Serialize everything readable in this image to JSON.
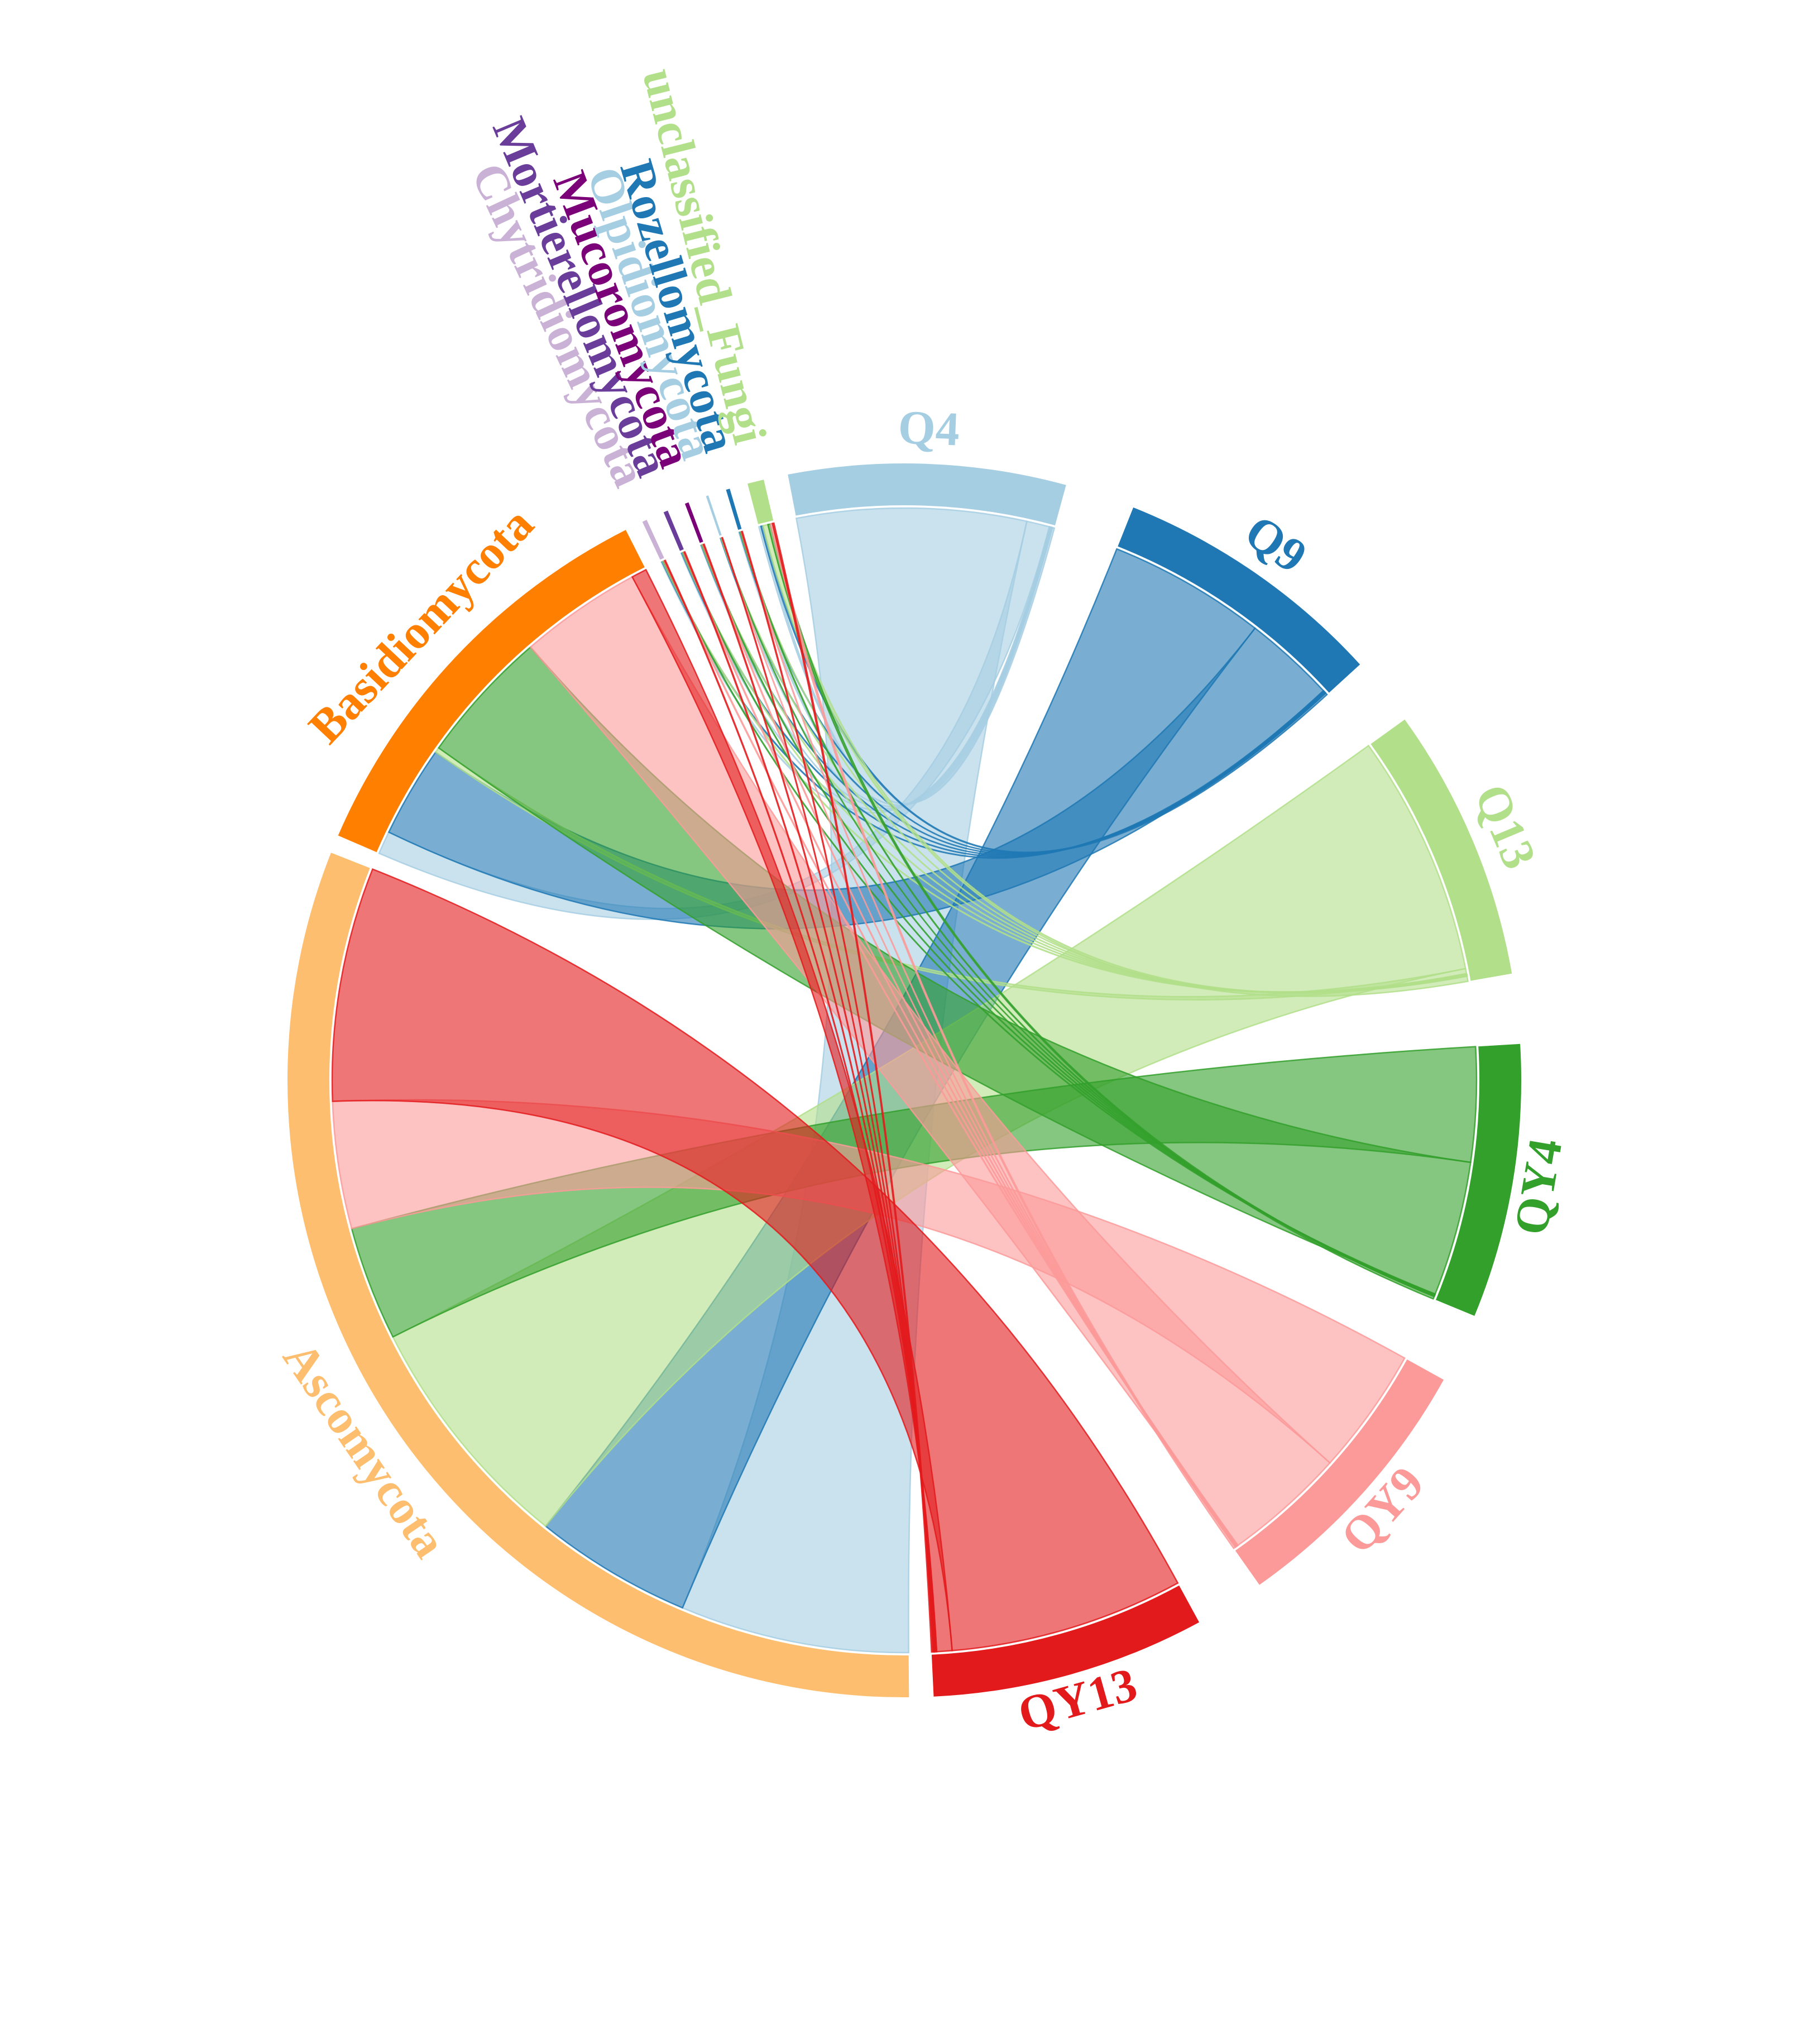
{
  "chart_data": {
    "type": "chord",
    "title": "",
    "samples": [
      {
        "name": "Q4",
        "color": "#a6cee3"
      },
      {
        "name": "Q9",
        "color": "#1f78b4"
      },
      {
        "name": "Q13",
        "color": "#b2df8a"
      },
      {
        "name": "QY4",
        "color": "#33a02c"
      },
      {
        "name": "QY9",
        "color": "#fb9a99"
      },
      {
        "name": "QY13",
        "color": "#e31a1c"
      }
    ],
    "phyla": [
      {
        "name": "Ascomycota",
        "color": "#fdbf6f"
      },
      {
        "name": "Basidiomycota",
        "color": "#ff7f00"
      },
      {
        "name": "Chytridiomycota",
        "color": "#cab2d6"
      },
      {
        "name": "Mortierellomycota",
        "color": "#6a3d9a"
      },
      {
        "name": "Mucoromycota",
        "color": "#7a0177"
      },
      {
        "name": "Olpidiomycota",
        "color": "#a6cee3"
      },
      {
        "name": "Rozellomycota",
        "color": "#1f78b4"
      },
      {
        "name": "unclassified_Fungi",
        "color": "#b2df8a"
      }
    ],
    "flows": [
      {
        "sample": "Q4",
        "phylum": "Ascomycota",
        "value": 90
      },
      {
        "sample": "Q4",
        "phylum": "Basidiomycota",
        "value": 9
      },
      {
        "sample": "Q4",
        "phylum": "Chytridiomycota",
        "value": 0.3
      },
      {
        "sample": "Q4",
        "phylum": "Mortierellomycota",
        "value": 0.3
      },
      {
        "sample": "Q4",
        "phylum": "Mucoromycota",
        "value": 0.2
      },
      {
        "sample": "Q4",
        "phylum": "Olpidiomycota",
        "value": 0.1
      },
      {
        "sample": "Q4",
        "phylum": "Rozellomycota",
        "value": 0.3
      },
      {
        "sample": "Q4",
        "phylum": "unclassified_Fungi",
        "value": 0.8
      },
      {
        "sample": "Q9",
        "phylum": "Ascomycota",
        "value": 62
      },
      {
        "sample": "Q9",
        "phylum": "Basidiomycota",
        "value": 36
      },
      {
        "sample": "Q9",
        "phylum": "Chytridiomycota",
        "value": 0.3
      },
      {
        "sample": "Q9",
        "phylum": "Mortierellomycota",
        "value": 0.3
      },
      {
        "sample": "Q9",
        "phylum": "Mucoromycota",
        "value": 0.2
      },
      {
        "sample": "Q9",
        "phylum": "Olpidiomycota",
        "value": 0.2
      },
      {
        "sample": "Q9",
        "phylum": "Rozellomycota",
        "value": 0.2
      },
      {
        "sample": "Q9",
        "phylum": "unclassified_Fungi",
        "value": 0.8
      },
      {
        "sample": "Q13",
        "phylum": "Ascomycota",
        "value": 95
      },
      {
        "sample": "Q13",
        "phylum": "Basidiomycota",
        "value": 2
      },
      {
        "sample": "Q13",
        "phylum": "Chytridiomycota",
        "value": 0.3
      },
      {
        "sample": "Q13",
        "phylum": "Mortierellomycota",
        "value": 0.2
      },
      {
        "sample": "Q13",
        "phylum": "Mucoromycota",
        "value": 0.2
      },
      {
        "sample": "Q13",
        "phylum": "Olpidiomycota",
        "value": 0.2
      },
      {
        "sample": "Q13",
        "phylum": "Rozellomycota",
        "value": 0.1
      },
      {
        "sample": "Q13",
        "phylum": "unclassified_Fungi",
        "value": 2
      },
      {
        "sample": "QY4",
        "phylum": "Ascomycota",
        "value": 45
      },
      {
        "sample": "QY4",
        "phylum": "Basidiomycota",
        "value": 53
      },
      {
        "sample": "QY4",
        "phylum": "Chytridiomycota",
        "value": 0.2
      },
      {
        "sample": "QY4",
        "phylum": "Mortierellomycota",
        "value": 0.2
      },
      {
        "sample": "QY4",
        "phylum": "Mucoromycota",
        "value": 0.2
      },
      {
        "sample": "QY4",
        "phylum": "Olpidiomycota",
        "value": 0.1
      },
      {
        "sample": "QY4",
        "phylum": "Rozellomycota",
        "value": 0.3
      },
      {
        "sample": "QY4",
        "phylum": "unclassified_Fungi",
        "value": 1
      },
      {
        "sample": "QY9",
        "phylum": "Ascomycota",
        "value": 50
      },
      {
        "sample": "QY9",
        "phylum": "Basidiomycota",
        "value": 48
      },
      {
        "sample": "QY9",
        "phylum": "Chytridiomycota",
        "value": 0.3
      },
      {
        "sample": "QY9",
        "phylum": "Mortierellomycota",
        "value": 0.3
      },
      {
        "sample": "QY9",
        "phylum": "Mucoromycota",
        "value": 0.3
      },
      {
        "sample": "QY9",
        "phylum": "Olpidiomycota",
        "value": 0.1
      },
      {
        "sample": "QY9",
        "phylum": "Rozellomycota",
        "value": 0.2
      },
      {
        "sample": "QY9",
        "phylum": "unclassified_Fungi",
        "value": 0.8
      },
      {
        "sample": "QY13",
        "phylum": "Ascomycota",
        "value": 92
      },
      {
        "sample": "QY13",
        "phylum": "Basidiomycota",
        "value": 6
      },
      {
        "sample": "QY13",
        "phylum": "Chytridiomycota",
        "value": 0.3
      },
      {
        "sample": "QY13",
        "phylum": "Mortierellomycota",
        "value": 0.3
      },
      {
        "sample": "QY13",
        "phylum": "Mucoromycota",
        "value": 0.3
      },
      {
        "sample": "QY13",
        "phylum": "Olpidiomycota",
        "value": 0.2
      },
      {
        "sample": "QY13",
        "phylum": "Rozellomycota",
        "value": 0.3
      },
      {
        "sample": "QY13",
        "phylum": "unclassified_Fungi",
        "value": 0.6
      }
    ]
  }
}
